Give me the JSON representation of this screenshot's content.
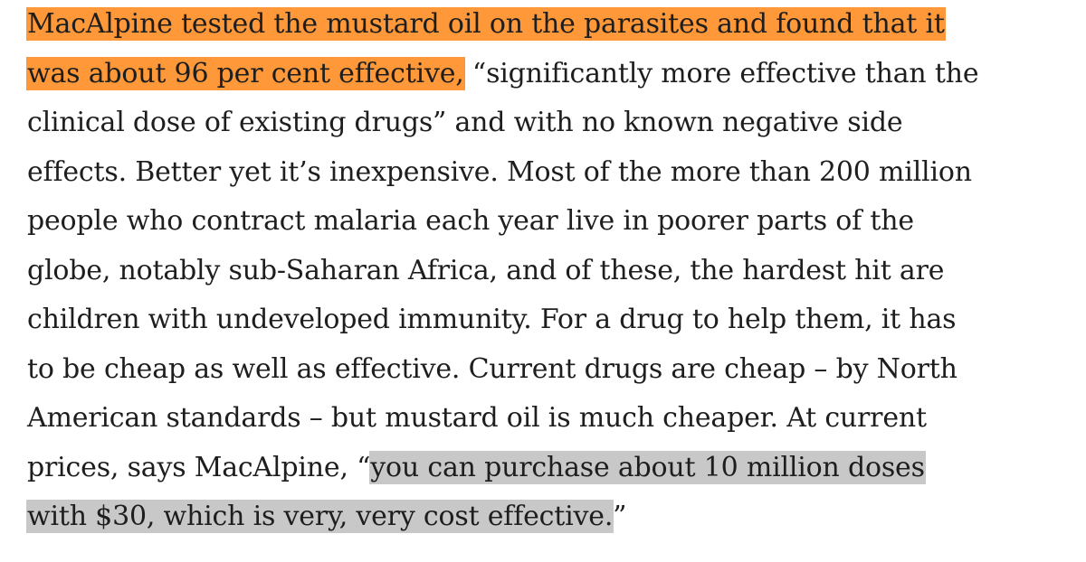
{
  "article": {
    "lines": [
      [
        {
          "text": "MacAlpine tested the mustard oil on the parasites and found that it",
          "hl": "orange"
        }
      ],
      [
        {
          "text": "was about 96 per cent effective,",
          "hl": "orange"
        },
        {
          "text": " “significantly more effective than the",
          "hl": ""
        }
      ],
      [
        {
          "text": "clinical dose of existing drugs” and with no known negative side",
          "hl": ""
        }
      ],
      [
        {
          "text": "effects. Better yet it’s inexpensive. Most of the more than 200 million",
          "hl": ""
        }
      ],
      [
        {
          "text": "people who contract malaria each year live in poorer parts of the",
          "hl": ""
        }
      ],
      [
        {
          "text": "globe, notably sub-Saharan Africa, and of these, the hardest hit are",
          "hl": ""
        }
      ],
      [
        {
          "text": "children with undeveloped immunity. For a drug to help them, it has",
          "hl": ""
        }
      ],
      [
        {
          "text": "to be cheap as well as effective. Current drugs are cheap – by North",
          "hl": ""
        }
      ],
      [
        {
          "text": "American standards – but mustard oil is much cheaper. At current",
          "hl": ""
        }
      ],
      [
        {
          "text": "prices, says MacAlpine, “",
          "hl": ""
        },
        {
          "text": "you can purchase about 10 million doses",
          "hl": "gray"
        }
      ],
      [
        {
          "text": "with $30, which is very, very cost effective.",
          "hl": "gray"
        },
        {
          "text": "”",
          "hl": ""
        }
      ]
    ]
  },
  "colors": {
    "text": "#1e1e1e",
    "highlight_orange": "#ff9838",
    "highlight_gray": "#c8c8c8",
    "background": "#ffffff"
  }
}
